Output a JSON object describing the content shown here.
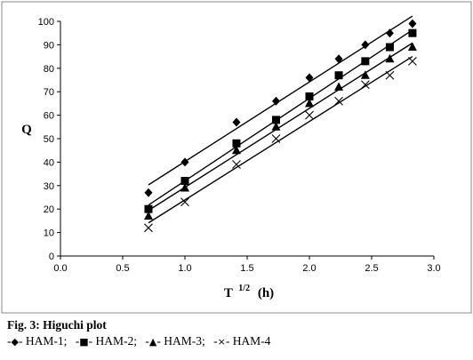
{
  "chart_data": {
    "type": "scatter",
    "title": "",
    "xlabel_base": "T",
    "xlabel_sup": "1/2",
    "xlabel_unit": "(h)",
    "ylabel": "Q",
    "xlim": [
      0.0,
      3.0
    ],
    "ylim": [
      0,
      100
    ],
    "x_ticks": [
      "0.0",
      "0.5",
      "1.0",
      "1.5",
      "2.0",
      "2.5",
      "3.0"
    ],
    "y_ticks": [
      "0",
      "10",
      "20",
      "30",
      "40",
      "50",
      "60",
      "70",
      "80",
      "90",
      "100"
    ],
    "grid": false,
    "trendlines": true,
    "x": [
      0.707,
      1.0,
      1.414,
      1.732,
      2.0,
      2.236,
      2.449,
      2.646,
      2.828
    ],
    "series": [
      {
        "name": "HAM-1",
        "marker": "diamond",
        "values": [
          27,
          40,
          57,
          66,
          76,
          84,
          90,
          95,
          99
        ]
      },
      {
        "name": "HAM-2",
        "marker": "square",
        "values": [
          20,
          32,
          48,
          58,
          68,
          77,
          83,
          89,
          95
        ]
      },
      {
        "name": "HAM-3",
        "marker": "triangle",
        "values": [
          17,
          29,
          45,
          55,
          65,
          72,
          77,
          84,
          89
        ]
      },
      {
        "name": "HAM-4",
        "marker": "cross",
        "values": [
          12,
          23,
          39,
          50,
          60,
          66,
          73,
          77,
          83
        ]
      }
    ]
  },
  "caption": {
    "title": "Fig. 3: Higuchi plot",
    "legend": [
      {
        "marker_glyph": "◆",
        "label": "HAM-1;"
      },
      {
        "marker_glyph": "■",
        "label": "HAM-2;"
      },
      {
        "marker_glyph": "▲",
        "label": "HAM-3;"
      },
      {
        "marker_glyph": "×",
        "label": "HAM-4"
      }
    ]
  }
}
